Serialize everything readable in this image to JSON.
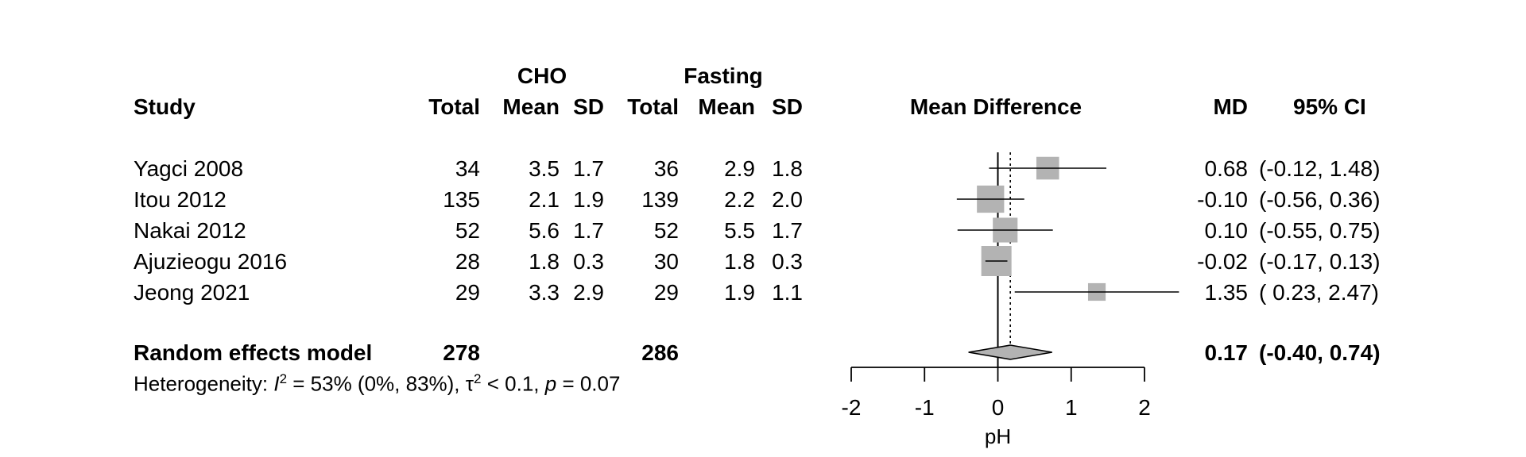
{
  "headers": {
    "group1": "CHO",
    "group2": "Fasting",
    "study": "Study",
    "total1": "Total",
    "mean1": "Mean",
    "sd1": "SD",
    "total2": "Total",
    "mean2": "Mean",
    "sd2": "SD",
    "effect": "Mean Difference",
    "md": "MD",
    "ci": "95% CI"
  },
  "studies": [
    {
      "study": "Yagci 2008",
      "n1": "34",
      "mean1": "3.5",
      "sd1": "1.7",
      "n2": "36",
      "mean2": "2.9",
      "sd2": "1.8",
      "md_text": "0.68",
      "ci_text": "(-0.12, 1.48)"
    },
    {
      "study": "Itou 2012",
      "n1": "135",
      "mean1": "2.1",
      "sd1": "1.9",
      "n2": "139",
      "mean2": "2.2",
      "sd2": "2.0",
      "md_text": "-0.10",
      "ci_text": "(-0.56, 0.36)"
    },
    {
      "study": "Nakai 2012",
      "n1": "52",
      "mean1": "5.6",
      "sd1": "1.7",
      "n2": "52",
      "mean2": "5.5",
      "sd2": "1.7",
      "md_text": "0.10",
      "ci_text": "(-0.55, 0.75)"
    },
    {
      "study": "Ajuzieogu 2016",
      "n1": "28",
      "mean1": "1.8",
      "sd1": "0.3",
      "n2": "30",
      "mean2": "1.8",
      "sd2": "0.3",
      "md_text": "-0.02",
      "ci_text": "(-0.17, 0.13)"
    },
    {
      "study": "Jeong 2021",
      "n1": "29",
      "mean1": "3.3",
      "sd1": "2.9",
      "n2": "29",
      "mean2": "1.9",
      "sd2": "1.1",
      "md_text": "1.35",
      "ci_text": "( 0.23, 2.47)"
    }
  ],
  "summary": {
    "label": "Random effects model",
    "n1": "278",
    "n2": "286",
    "md_text": "0.17",
    "ci_text": "(-0.40, 0.74)"
  },
  "heterogeneity": {
    "prefix": "Heterogeneity: ",
    "i2_symbol": "I",
    "i2_sup": "2",
    "i2_rest": " = 53% (0%, 83%), ",
    "tau_symbol": "τ",
    "tau_sup": "2",
    "tau_rest": " < 0.1, ",
    "p_symbol": "p",
    "p_rest": " = 0.07"
  },
  "colors": {
    "square": "#b3b3b3",
    "diamond": "#b3b3b3",
    "line": "#000000"
  },
  "chart_data": {
    "type": "forest",
    "xlabel": "pH",
    "xlim": [
      -2,
      2
    ],
    "ticks": [
      -2,
      -1,
      0,
      1,
      2
    ],
    "tick_labels": [
      "-2",
      "-1",
      "0",
      "1",
      "2"
    ],
    "null_value": 0,
    "studies": [
      {
        "label": "Yagci 2008",
        "md": 0.68,
        "lower": -0.12,
        "upper": 1.48,
        "weight": 14.3
      },
      {
        "label": "Itou 2012",
        "md": -0.1,
        "lower": -0.56,
        "upper": 0.36,
        "weight": 25.9
      },
      {
        "label": "Nakai 2012",
        "md": 0.1,
        "lower": -0.55,
        "upper": 0.75,
        "weight": 19.1
      },
      {
        "label": "Ajuzieogu 2016",
        "md": -0.02,
        "lower": -0.17,
        "upper": 0.13,
        "weight": 35.3
      },
      {
        "label": "Jeong 2021",
        "md": 1.35,
        "lower": 0.23,
        "upper": 2.47,
        "weight": 5.4
      }
    ],
    "summary": {
      "label": "Random effects model",
      "md": 0.17,
      "lower": -0.4,
      "upper": 0.74
    }
  }
}
